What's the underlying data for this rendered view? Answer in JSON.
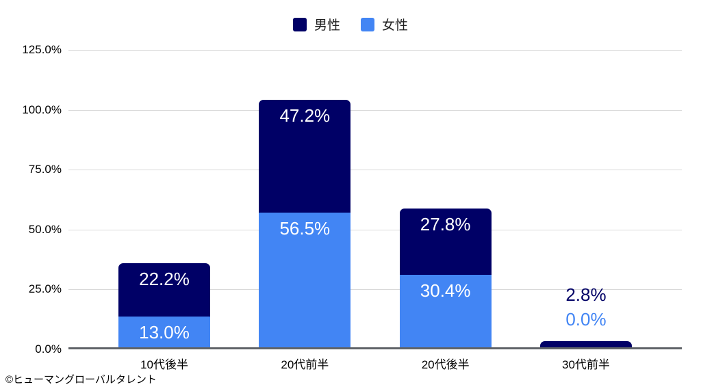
{
  "chart_data": {
    "type": "bar",
    "stacked": true,
    "title": "",
    "xlabel": "",
    "ylabel": "",
    "categories": [
      "10代後半",
      "20代前半",
      "20代後半",
      "30代前半"
    ],
    "series": [
      {
        "name": "男性",
        "color": "#000066",
        "values": [
          22.2,
          47.2,
          27.8,
          2.8
        ]
      },
      {
        "name": "女性",
        "color": "#4285f4",
        "values": [
          13.0,
          56.5,
          30.4,
          0.0
        ]
      }
    ],
    "value_labels": [
      [
        "22.2%",
        "47.2%",
        "27.8%",
        "2.8%"
      ],
      [
        "13.0%",
        "56.5%",
        "30.4%",
        "0.0%"
      ]
    ],
    "ylim": [
      0,
      125
    ],
    "yticks": [
      "0.0%",
      "25.0%",
      "50.0%",
      "75.0%",
      "100.0%",
      "125.0%"
    ],
    "grid": true,
    "legend_position": "top",
    "gridline_color": "#d9d9d9",
    "axis_color": "#5f6368"
  },
  "legend": {
    "items": [
      {
        "label": "男性",
        "color": "#000066"
      },
      {
        "label": "女性",
        "color": "#4285f4"
      }
    ]
  },
  "footer": {
    "copyright": "©ヒューマングローバルタレント"
  }
}
